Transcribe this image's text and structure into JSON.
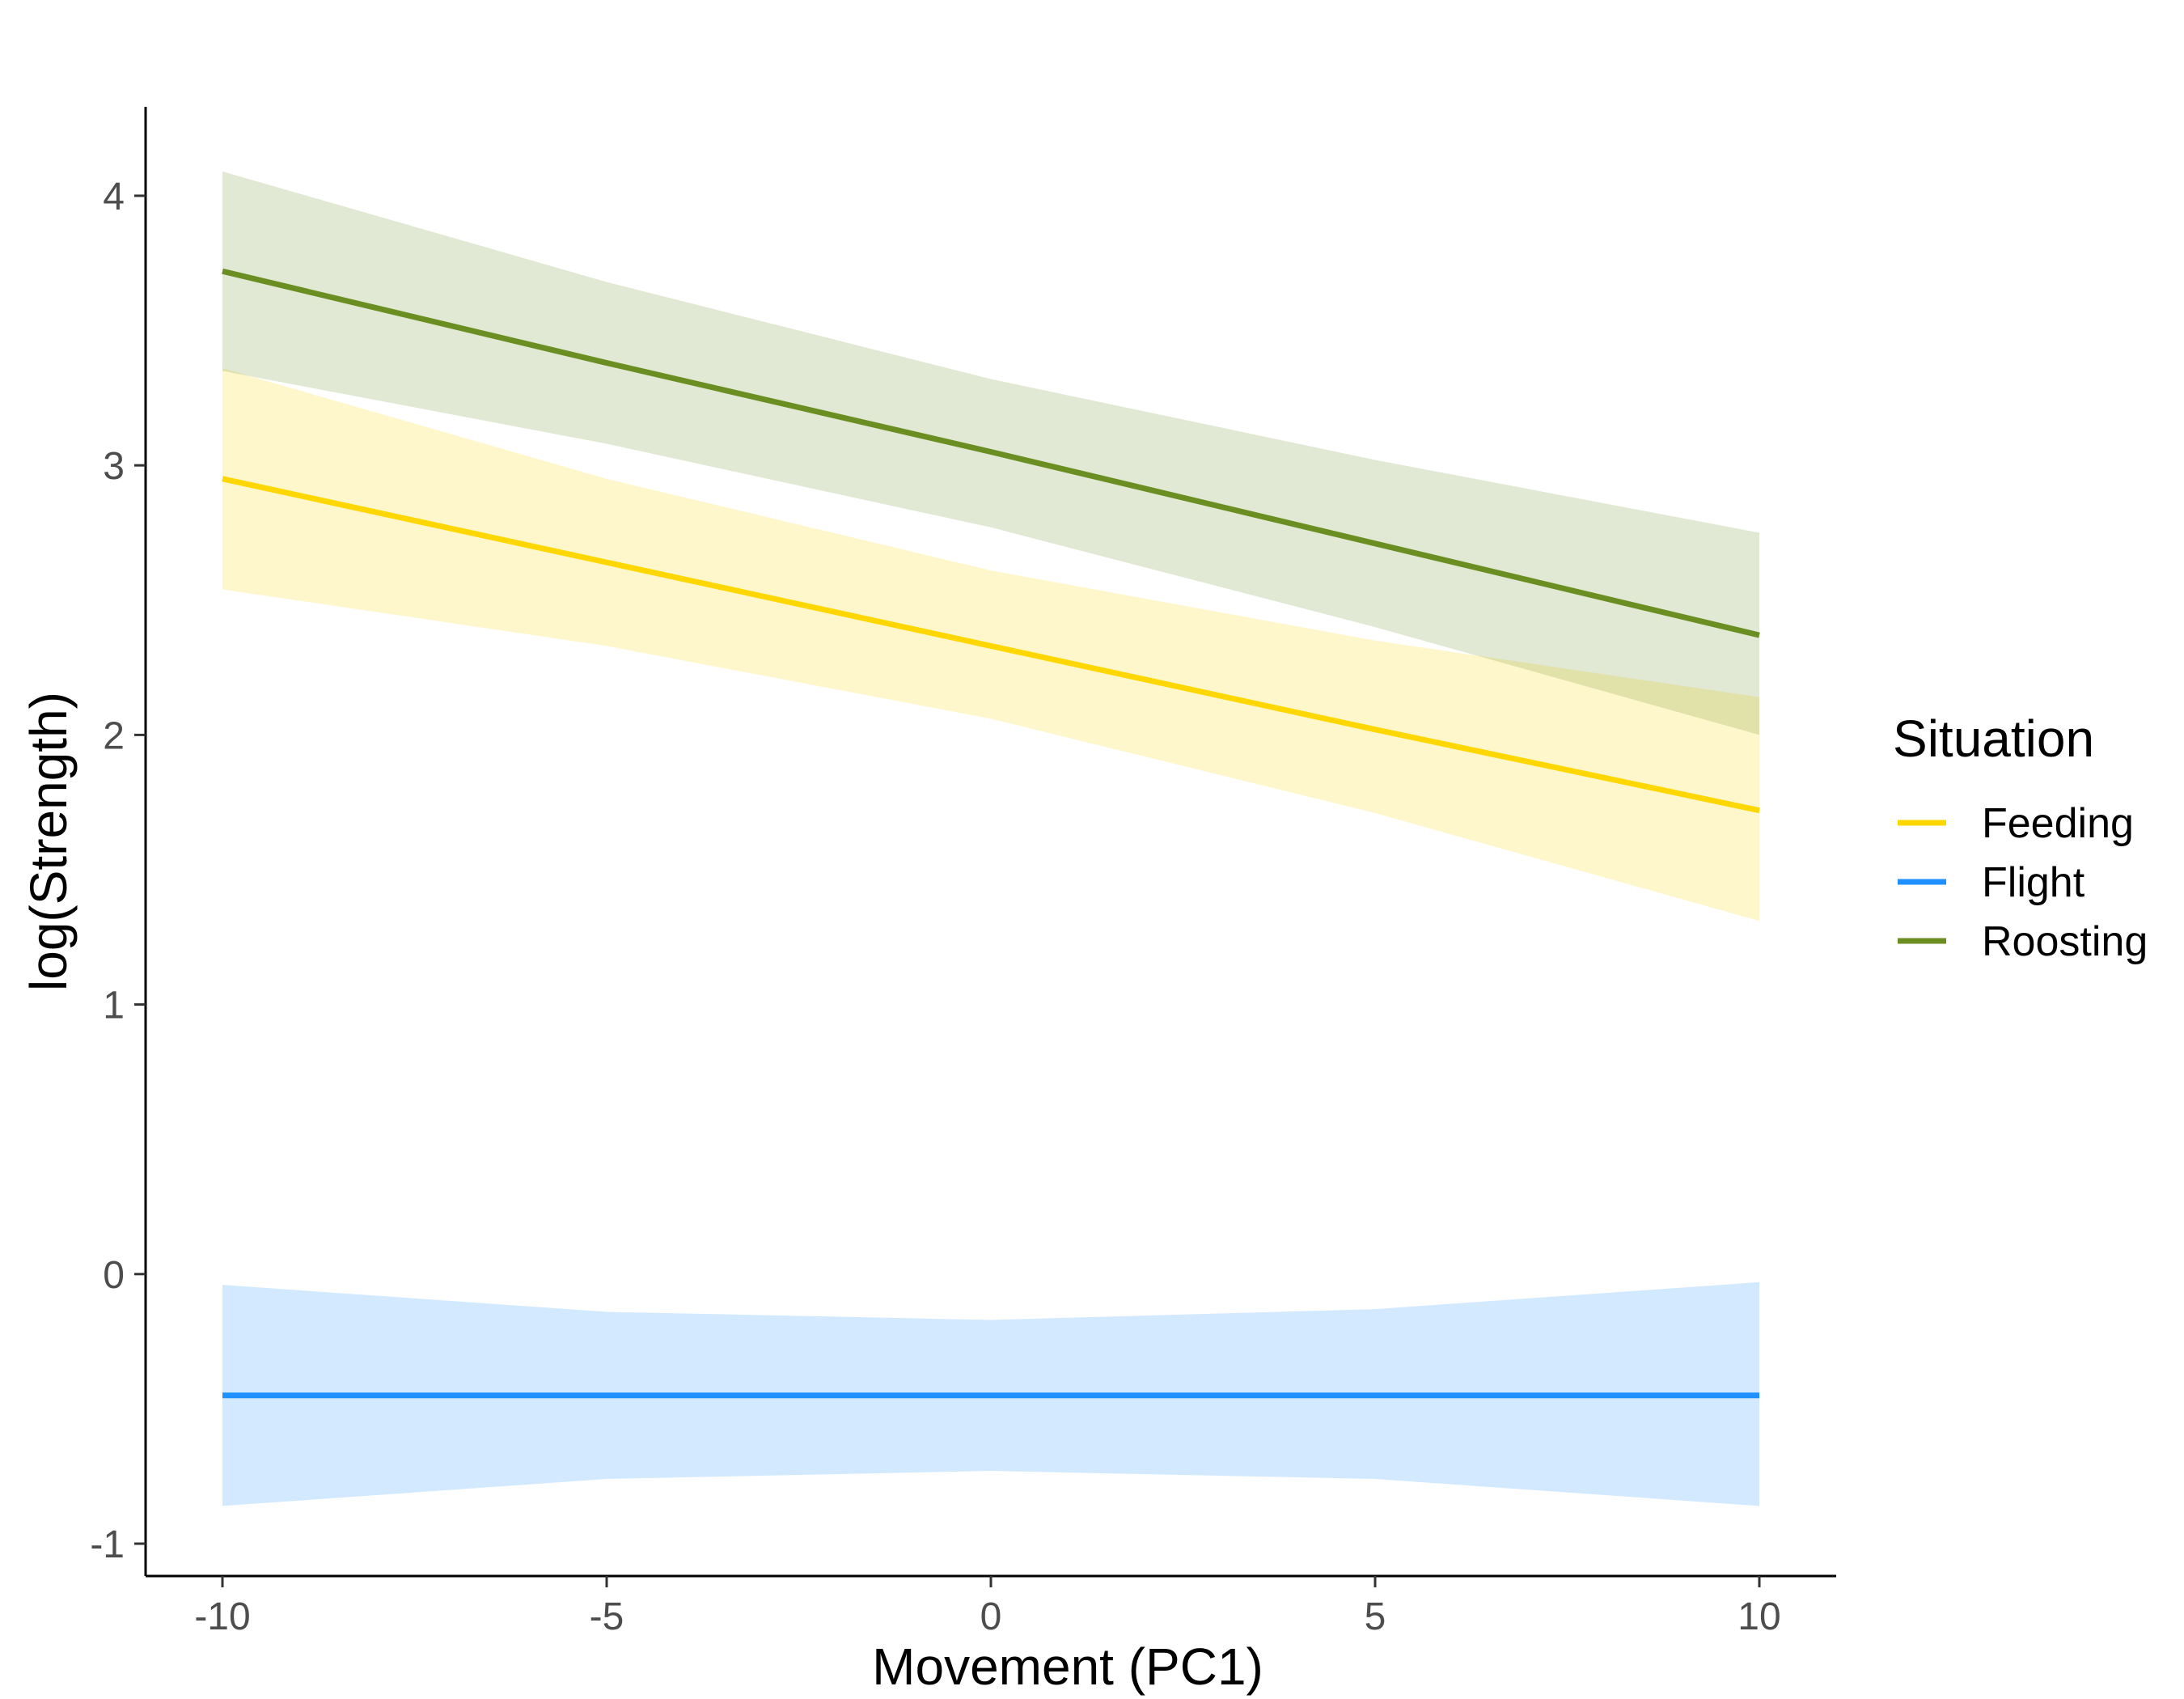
{
  "chart_data": {
    "type": "line",
    "title": "",
    "xlabel": "Movement (PC1)",
    "ylabel": "log(Strength)",
    "xlim": [
      -11,
      11
    ],
    "ylim": [
      -1.12,
      4.33
    ],
    "x_ticks": [
      -10,
      -5,
      0,
      5,
      10
    ],
    "y_ticks": [
      -1,
      0,
      1,
      2,
      3,
      4
    ],
    "x_tick_labels": [
      "-10",
      "-5",
      "0",
      "5",
      "10"
    ],
    "y_tick_labels": [
      "-1",
      "0",
      "1",
      "2",
      "3",
      "4"
    ],
    "grid": false,
    "legend": {
      "title": "Situation",
      "position": "right"
    },
    "series": [
      {
        "name": "Feeding",
        "color": "#FFD700",
        "band_color": "#FFD700",
        "x": [
          -10,
          -5,
          0,
          5,
          10
        ],
        "y": [
          2.95,
          2.64,
          2.33,
          2.02,
          1.72
        ],
        "lower": [
          2.54,
          2.33,
          2.06,
          1.71,
          1.31
        ],
        "upper": [
          3.36,
          2.95,
          2.61,
          2.35,
          2.14
        ]
      },
      {
        "name": "Flight",
        "color": "#1E90FF",
        "band_color": "#1E90FF",
        "x": [
          -10,
          -5,
          0,
          5,
          10
        ],
        "y": [
          -0.45,
          -0.45,
          -0.45,
          -0.45,
          -0.45
        ],
        "lower": [
          -0.86,
          -0.76,
          -0.73,
          -0.76,
          -0.86
        ],
        "upper": [
          -0.04,
          -0.14,
          -0.17,
          -0.13,
          -0.03
        ]
      },
      {
        "name": "Roosting",
        "color": "#6B8E23",
        "band_color": "#6B8E23",
        "x": [
          -10,
          -5,
          0,
          5,
          10
        ],
        "y": [
          3.72,
          3.38,
          3.05,
          2.71,
          2.37
        ],
        "lower": [
          3.35,
          3.08,
          2.77,
          2.4,
          2.0
        ],
        "upper": [
          4.09,
          3.68,
          3.32,
          3.02,
          2.75
        ]
      }
    ]
  }
}
